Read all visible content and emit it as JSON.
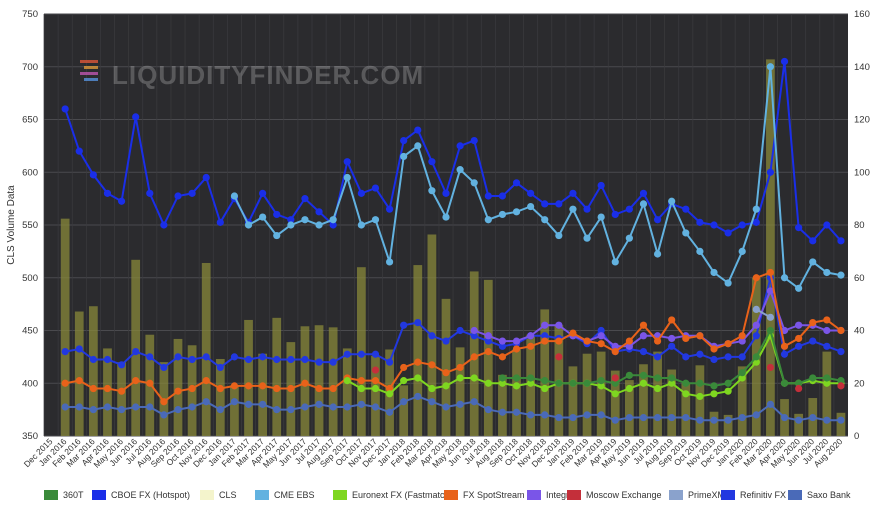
{
  "chart_data": {
    "type": "bar+line",
    "ylabel": "CLS Volume Data",
    "y_left_range": [
      350,
      750
    ],
    "y_left_ticks": [
      "350",
      "400",
      "450",
      "500",
      "550",
      "600",
      "650",
      "700",
      "750"
    ],
    "y_right_range": [
      0,
      160
    ],
    "y_right_ticks": [
      "0",
      "20",
      "40",
      "60",
      "80",
      "100",
      "120",
      "140",
      "160"
    ],
    "grid": true,
    "legend_position": "bottom",
    "watermark": "LIQUIDITYFINDER.COM",
    "categories": [
      "Dec 2015",
      "Jan 2016",
      "Feb 2016",
      "Mar 2016",
      "Apr 2016",
      "May 2016",
      "Jun 2016",
      "Jul 2016",
      "Aug 2016",
      "Sep 2016",
      "Oct 2016",
      "Nov 2016",
      "Dec 2016",
      "Jan 2017",
      "Feb 2017",
      "Mar 2017",
      "Apr 2017",
      "May 2017",
      "Jun 2017",
      "Jul 2017",
      "Aug 2017",
      "Sep 2017",
      "Oct 2017",
      "Nov 2017",
      "Dec 2017",
      "Jan 2018",
      "Feb 2018",
      "Mar 2018",
      "Apr 2018",
      "May 2018",
      "Jun 2018",
      "Jul 2018",
      "Aug 2018",
      "Sep 2018",
      "Oct 2018",
      "Nov 2018",
      "Dec 2018",
      "Jan 2019",
      "Feb 2019",
      "Mar 2019",
      "Apr 2019",
      "May 2019",
      "Jun 2019",
      "Jul 2019",
      "Aug 2019",
      "Sep 2019",
      "Oct 2019",
      "Nov 2019",
      "Dec 2019",
      "Jan 2020",
      "Feb 2020",
      "Mar 2020",
      "Apr 2020",
      "May 2020",
      "Jun 2020",
      "Jul 2020",
      "Aug 2020"
    ],
    "bars": {
      "name": "CLS",
      "axis": "left",
      "color": "#8a8a3a",
      "values": [
        null,
        556,
        468,
        473,
        433,
        420,
        517,
        446,
        420,
        442,
        436,
        514,
        423,
        398,
        460,
        428,
        462,
        439,
        454,
        455,
        453,
        433,
        510,
        426,
        432,
        398,
        512,
        541,
        480,
        434,
        506,
        498,
        408,
        432,
        446,
        470,
        455,
        416,
        428,
        430,
        412,
        403,
        418,
        430,
        413,
        400,
        417,
        373,
        370,
        416,
        500,
        707,
        385,
        371,
        386,
        430,
        372
      ]
    },
    "series": [
      {
        "name": "CBOE FX (Hotspot)",
        "color": "#1a2ee8",
        "axis": "right",
        "values": [
          null,
          124,
          108,
          99,
          92,
          89,
          121,
          92,
          80,
          91,
          92,
          98,
          81,
          90,
          81,
          92,
          84,
          82,
          90,
          85,
          80,
          104,
          92,
          94,
          86,
          112,
          116,
          104,
          92,
          110,
          112,
          91,
          91,
          96,
          92,
          88,
          88,
          92,
          86,
          95,
          84,
          86,
          92,
          82,
          88,
          86,
          81,
          80,
          77,
          80,
          81,
          100,
          142,
          79,
          74,
          80,
          74
        ]
      },
      {
        "name": "CME EBS",
        "color": "#62b2e0",
        "axis": "right",
        "values": [
          null,
          null,
          null,
          null,
          null,
          null,
          null,
          null,
          null,
          null,
          null,
          null,
          null,
          91,
          80,
          83,
          76,
          80,
          82,
          80,
          82,
          98,
          80,
          82,
          66,
          106,
          110,
          93,
          83,
          101,
          96,
          82,
          84,
          85,
          87,
          82,
          76,
          86,
          75,
          83,
          66,
          75,
          88,
          69,
          89,
          77,
          70,
          62,
          58,
          70,
          86,
          140,
          60,
          56,
          66,
          62,
          61
        ]
      },
      {
        "name": "Refinitiv FX",
        "color": "#2238e0",
        "axis": "right",
        "values": [
          null,
          32,
          33,
          29,
          29,
          27,
          32,
          30,
          26,
          30,
          29,
          30,
          26,
          30,
          29,
          30,
          29,
          29,
          29,
          28,
          28,
          31,
          31,
          31,
          28,
          42,
          43,
          38,
          36,
          40,
          38,
          36,
          34,
          35,
          38,
          38,
          37,
          38,
          35,
          40,
          32,
          33,
          32,
          30,
          34,
          30,
          31,
          29,
          30,
          30,
          38,
          60,
          31,
          34,
          36,
          34,
          32
        ]
      },
      {
        "name": "Integral",
        "color": "#7a55e8",
        "axis": "right",
        "values": [
          null,
          null,
          null,
          null,
          null,
          null,
          null,
          null,
          null,
          null,
          null,
          null,
          null,
          null,
          null,
          null,
          null,
          null,
          null,
          null,
          null,
          null,
          null,
          null,
          null,
          null,
          null,
          null,
          null,
          null,
          40,
          38,
          36,
          36,
          38,
          42,
          42,
          38,
          36,
          38,
          34,
          34,
          38,
          38,
          37,
          38,
          38,
          34,
          35,
          36,
          42,
          55,
          40,
          42,
          42,
          40,
          40
        ]
      },
      {
        "name": "FX SpotStream",
        "color": "#e8621a",
        "axis": "right",
        "values": [
          null,
          20,
          21,
          18,
          18,
          17,
          21,
          20,
          13,
          17,
          18,
          21,
          18,
          19,
          19,
          19,
          18,
          18,
          20,
          18,
          18,
          22,
          21,
          21,
          18,
          26,
          28,
          27,
          24,
          26,
          30,
          32,
          30,
          33,
          34,
          36,
          36,
          39,
          36,
          35,
          32,
          36,
          42,
          36,
          44,
          37,
          38,
          33,
          35,
          38,
          60,
          62,
          34,
          37,
          43,
          44,
          40
        ]
      },
      {
        "name": "Euronext FX (Fastmatch)",
        "color": "#7ed620",
        "axis": "right",
        "values": [
          null,
          null,
          null,
          null,
          null,
          null,
          null,
          null,
          null,
          null,
          null,
          null,
          null,
          null,
          null,
          null,
          null,
          null,
          null,
          null,
          null,
          21,
          18,
          18,
          16,
          21,
          22,
          18,
          19,
          22,
          22,
          20,
          20,
          19,
          20,
          18,
          20,
          20,
          20,
          19,
          16,
          18,
          20,
          18,
          20,
          16,
          15,
          16,
          17,
          22,
          28,
          38,
          20,
          20,
          21,
          20,
          20
        ]
      },
      {
        "name": "360T",
        "color": "#3a8a3a",
        "axis": "right",
        "values": [
          null,
          null,
          null,
          null,
          null,
          null,
          null,
          null,
          null,
          null,
          null,
          null,
          null,
          null,
          null,
          null,
          null,
          null,
          null,
          null,
          null,
          null,
          null,
          null,
          null,
          null,
          null,
          null,
          null,
          null,
          null,
          null,
          22,
          22,
          22,
          21,
          20,
          20,
          20,
          21,
          20,
          23,
          23,
          22,
          22,
          20,
          20,
          19,
          20,
          24,
          30,
          40,
          20,
          20,
          22,
          22,
          21
        ]
      },
      {
        "name": "Moscow Exchange",
        "color": "#c42f3a",
        "axis": "right",
        "values": [
          null,
          null,
          null,
          null,
          null,
          null,
          null,
          null,
          null,
          null,
          null,
          null,
          null,
          null,
          null,
          null,
          null,
          null,
          null,
          null,
          null,
          null,
          null,
          25,
          null,
          null,
          null,
          null,
          null,
          null,
          null,
          null,
          null,
          null,
          null,
          null,
          30,
          null,
          null,
          null,
          22,
          null,
          null,
          null,
          null,
          null,
          null,
          null,
          null,
          null,
          null,
          26,
          null,
          18,
          null,
          null,
          19
        ]
      },
      {
        "name": "Saxo Bank",
        "color": "#4a6ab8",
        "axis": "right",
        "values": [
          null,
          11,
          11,
          10,
          11,
          10,
          11,
          11,
          8,
          10,
          11,
          13,
          10,
          13,
          12,
          12,
          10,
          10,
          11,
          12,
          11,
          11,
          12,
          11,
          9,
          13,
          15,
          13,
          11,
          12,
          13,
          10,
          9,
          9,
          8,
          8,
          7,
          7,
          8,
          8,
          6,
          7,
          7,
          7,
          7,
          7,
          6,
          6,
          6,
          7,
          8,
          12,
          7,
          6,
          7,
          6,
          6
        ]
      },
      {
        "name": "PrimeXM",
        "color": "#8aa2cc",
        "axis": "right",
        "values": [
          null,
          null,
          null,
          null,
          null,
          null,
          null,
          null,
          null,
          null,
          null,
          null,
          null,
          null,
          null,
          null,
          null,
          null,
          null,
          null,
          null,
          null,
          null,
          null,
          null,
          null,
          null,
          null,
          null,
          null,
          null,
          null,
          null,
          null,
          null,
          null,
          null,
          null,
          null,
          null,
          null,
          null,
          null,
          null,
          null,
          null,
          null,
          null,
          null,
          null,
          48,
          45,
          null,
          null,
          null,
          null,
          null
        ]
      }
    ]
  },
  "legend": [
    {
      "label": "360T",
      "color": "#3a8a3a"
    },
    {
      "label": "CBOE FX (Hotspot)",
      "color": "#1a2ee8"
    },
    {
      "label": "CLS",
      "color": "#f4f4cc"
    },
    {
      "label": "CME EBS",
      "color": "#62b2e0"
    },
    {
      "label": "Euronext FX (Fastmatch)",
      "color": "#7ed620"
    },
    {
      "label": "FX SpotStream",
      "color": "#e8621a"
    },
    {
      "label": "Integral",
      "color": "#7a55e8"
    },
    {
      "label": "Moscow Exchange",
      "color": "#c42f3a"
    },
    {
      "label": "PrimeXM",
      "color": "#8aa2cc"
    },
    {
      "label": "Refinitiv FX",
      "color": "#2238e0"
    },
    {
      "label": "Saxo Bank",
      "color": "#4a6ab8"
    }
  ]
}
